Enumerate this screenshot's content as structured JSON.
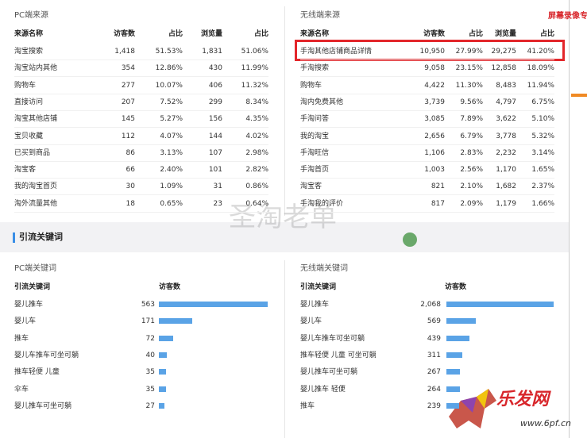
{
  "watermark_top": "屏幕录像专",
  "watermark_center": "圣淘老单",
  "logo": {
    "brand": "乐发网",
    "url": "www.6pf.cn"
  },
  "source_section": {
    "pc": {
      "title": "PC端来源",
      "columns": [
        "来源名称",
        "访客数",
        "占比",
        "浏览量",
        "占比"
      ],
      "rows": [
        [
          "淘宝搜索",
          "1,418",
          "51.53%",
          "1,831",
          "51.06%"
        ],
        [
          "淘宝站内其他",
          "354",
          "12.86%",
          "430",
          "11.99%"
        ],
        [
          "购物车",
          "277",
          "10.07%",
          "406",
          "11.32%"
        ],
        [
          "直接访问",
          "207",
          "7.52%",
          "299",
          "8.34%"
        ],
        [
          "淘宝其他店铺",
          "145",
          "5.27%",
          "156",
          "4.35%"
        ],
        [
          "宝贝收藏",
          "112",
          "4.07%",
          "144",
          "4.02%"
        ],
        [
          "已买到商品",
          "86",
          "3.13%",
          "107",
          "2.98%"
        ],
        [
          "淘宝客",
          "66",
          "2.40%",
          "101",
          "2.82%"
        ],
        [
          "我的淘宝首页",
          "30",
          "1.09%",
          "31",
          "0.86%"
        ],
        [
          "淘外流量其他",
          "18",
          "0.65%",
          "23",
          "0.64%"
        ]
      ]
    },
    "wireless": {
      "title": "无线端来源",
      "columns": [
        "来源名称",
        "访客数",
        "占比",
        "浏览量",
        "占比"
      ],
      "rows": [
        [
          "手淘其他店铺商品详情",
          "10,950",
          "27.99%",
          "29,275",
          "41.20%"
        ],
        [
          "手淘搜索",
          "9,058",
          "23.15%",
          "12,858",
          "18.09%"
        ],
        [
          "购物车",
          "4,422",
          "11.30%",
          "8,483",
          "11.94%"
        ],
        [
          "淘内免费其他",
          "3,739",
          "9.56%",
          "4,797",
          "6.75%"
        ],
        [
          "手淘问答",
          "3,085",
          "7.89%",
          "3,622",
          "5.10%"
        ],
        [
          "我的淘宝",
          "2,656",
          "6.79%",
          "3,778",
          "5.32%"
        ],
        [
          "手淘旺信",
          "1,106",
          "2.83%",
          "2,232",
          "3.14%"
        ],
        [
          "手淘首页",
          "1,003",
          "2.56%",
          "1,170",
          "1.65%"
        ],
        [
          "淘宝客",
          "821",
          "2.10%",
          "1,682",
          "2.37%"
        ],
        [
          "手淘我的评价",
          "817",
          "2.09%",
          "1,179",
          "1.66%"
        ]
      ]
    }
  },
  "keyword_section": {
    "title": "引流关键词",
    "pc": {
      "title": "PC端关键词",
      "columns": [
        "引流关键词",
        "访客数"
      ],
      "rows": [
        [
          "婴儿推车",
          563
        ],
        [
          "婴儿车",
          171
        ],
        [
          "推车",
          72
        ],
        [
          "婴儿车推车可坐可躺",
          40
        ],
        [
          "推车轻便 儿童",
          35
        ],
        [
          "伞车",
          35
        ],
        [
          "婴儿推车可坐可躺",
          27
        ]
      ]
    },
    "wireless": {
      "title": "无线端关键词",
      "columns": [
        "引流关键词",
        "访客数"
      ],
      "rows": [
        [
          "婴儿推车",
          {
            "value": 2068,
            "label": "2,068"
          }
        ],
        [
          "婴儿车",
          569
        ],
        [
          "婴儿车推车可坐可躺",
          439
        ],
        [
          "推车轻便 儿童 可坐可躺",
          311
        ],
        [
          "婴儿推车可坐可躺",
          267
        ],
        [
          "婴儿推车 轻便",
          264
        ],
        [
          "推车",
          239
        ]
      ]
    }
  }
}
